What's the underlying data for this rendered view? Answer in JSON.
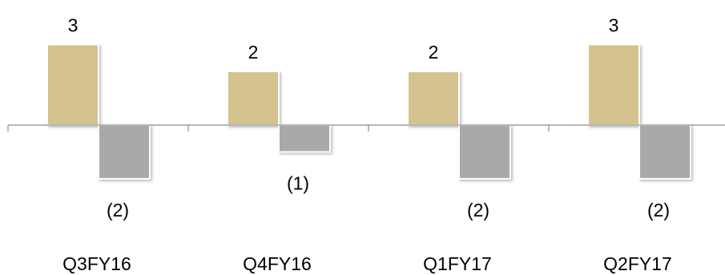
{
  "chart_data": {
    "type": "bar",
    "categories": [
      "Q3FY16",
      "Q4FY16",
      "Q1FY17",
      "Q2FY17"
    ],
    "series": [
      {
        "values": [
          3,
          2,
          2,
          3
        ],
        "labels": [
          "3",
          "2",
          "2",
          "3"
        ]
      },
      {
        "values": [
          -2,
          -1,
          -2,
          -2
        ],
        "labels": [
          "(2)",
          "(1)",
          "(2)",
          "(2)"
        ]
      }
    ],
    "colors": [
      "#d4c38f",
      "#a8a9ab"
    ],
    "title": "",
    "xlabel": "",
    "ylabel": "",
    "ylim": [
      -2,
      3
    ],
    "grid": false,
    "legend": "none"
  }
}
